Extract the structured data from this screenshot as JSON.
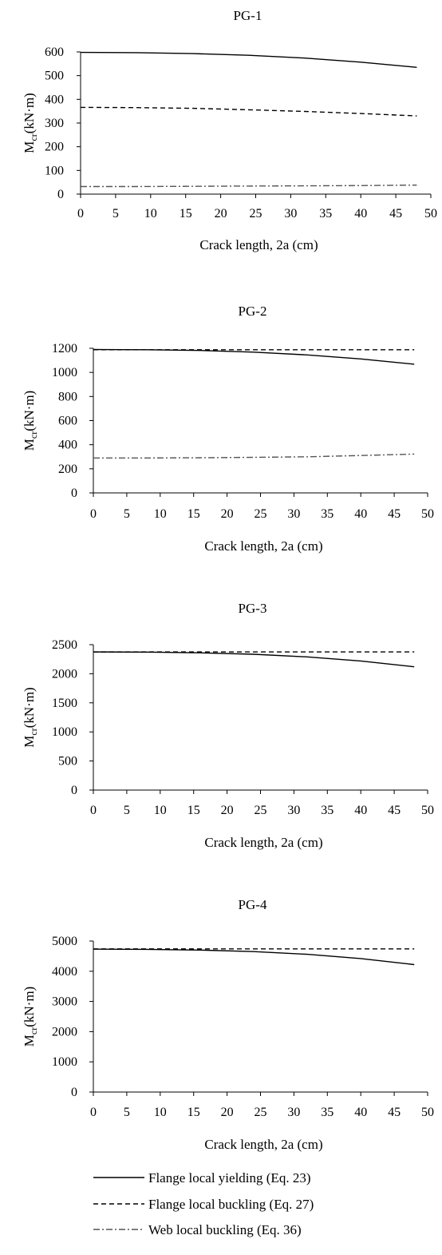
{
  "legend": {
    "entries": [
      {
        "label": "Flange local yielding (Eq. 23)",
        "style": "solid",
        "color": "#000000"
      },
      {
        "label": "Flange local buckling (Eq. 27)",
        "style": "dashed",
        "color": "#000000"
      },
      {
        "label": "Web local buckling (Eq. 36)",
        "style": "dashdot",
        "color": "#000000"
      }
    ]
  },
  "chart_data": [
    {
      "type": "line",
      "title": "PG-1",
      "xlabel": "Crack length, 2a (cm)",
      "ylabel": "Mcr (kN·m)",
      "ylabel_base": "M",
      "ylabel_sub": "cr",
      "ylabel_rest": "(kN·m)",
      "xlim": [
        0,
        50
      ],
      "ylim": [
        0,
        600
      ],
      "xticks": [
        0,
        5,
        10,
        15,
        20,
        25,
        30,
        35,
        40,
        45,
        50
      ],
      "yticks": [
        0,
        100,
        200,
        300,
        400,
        500,
        600
      ],
      "x": [
        0,
        8,
        16,
        24,
        32,
        40,
        48
      ],
      "series": [
        {
          "name": "Flange local yielding (Eq. 23)",
          "values": [
            598,
            597,
            593,
            586,
            574,
            557,
            535
          ]
        },
        {
          "name": "Flange local buckling (Eq. 27)",
          "values": [
            366,
            365,
            362,
            356,
            349,
            340,
            330
          ]
        },
        {
          "name": "Web local buckling (Eq. 36)",
          "values": [
            32,
            32,
            33,
            34,
            35,
            36,
            38
          ]
        }
      ]
    },
    {
      "type": "line",
      "title": "PG-2",
      "xlabel": "Crack length, 2a (cm)",
      "ylabel": "Mcr (kN·m)",
      "ylabel_base": "M",
      "ylabel_sub": "cr",
      "ylabel_rest": "(kN·m)",
      "xlim": [
        0,
        50
      ],
      "ylim": [
        0,
        1200
      ],
      "xticks": [
        0,
        5,
        10,
        15,
        20,
        25,
        30,
        35,
        40,
        45,
        50
      ],
      "yticks": [
        0,
        200,
        400,
        600,
        800,
        1000,
        1200
      ],
      "x": [
        0,
        8,
        16,
        24,
        32,
        40,
        48
      ],
      "series": [
        {
          "name": "Flange local yielding (Eq. 23)",
          "values": [
            1190,
            1188,
            1182,
            1168,
            1145,
            1112,
            1068
          ]
        },
        {
          "name": "Flange local buckling (Eq. 27)",
          "values": [
            1188,
            1188,
            1188,
            1188,
            1188,
            1188,
            1188
          ]
        },
        {
          "name": "Web local buckling (Eq. 36)",
          "values": [
            290,
            290,
            292,
            295,
            300,
            310,
            322
          ]
        }
      ]
    },
    {
      "type": "line",
      "title": "PG-3",
      "xlabel": "Crack length, 2a (cm)",
      "ylabel": "Mcr (kN·m)",
      "ylabel_base": "M",
      "ylabel_sub": "cr",
      "ylabel_rest": "(kN·m)",
      "xlim": [
        0,
        50
      ],
      "ylim": [
        0,
        2500
      ],
      "xticks": [
        0,
        5,
        10,
        15,
        20,
        25,
        30,
        35,
        40,
        45,
        50
      ],
      "yticks": [
        0,
        500,
        1000,
        1500,
        2000,
        2500
      ],
      "x": [
        0,
        8,
        16,
        24,
        32,
        40,
        48
      ],
      "series": [
        {
          "name": "Flange local yielding (Eq. 23)",
          "values": [
            2375,
            2372,
            2360,
            2335,
            2290,
            2220,
            2120
          ]
        },
        {
          "name": "Flange local buckling (Eq. 27)",
          "values": [
            2375,
            2375,
            2375,
            2375,
            2375,
            2375,
            2375
          ]
        }
      ]
    },
    {
      "type": "line",
      "title": "PG-4",
      "xlabel": "Crack length, 2a (cm)",
      "ylabel": "Mcr (kN·m)",
      "ylabel_base": "M",
      "ylabel_sub": "cr",
      "ylabel_rest": "(kN·m)",
      "xlim": [
        0,
        50
      ],
      "ylim": [
        0,
        5000
      ],
      "xticks": [
        0,
        5,
        10,
        15,
        20,
        25,
        30,
        35,
        40,
        45,
        50
      ],
      "yticks": [
        0,
        1000,
        2000,
        3000,
        4000,
        5000
      ],
      "x": [
        0,
        8,
        16,
        24,
        32,
        40,
        48
      ],
      "series": [
        {
          "name": "Flange local yielding (Eq. 23)",
          "values": [
            4730,
            4725,
            4700,
            4650,
            4560,
            4420,
            4220
          ]
        },
        {
          "name": "Flange local buckling (Eq. 27)",
          "values": [
            4740,
            4740,
            4740,
            4740,
            4740,
            4740,
            4740
          ]
        }
      ]
    }
  ]
}
